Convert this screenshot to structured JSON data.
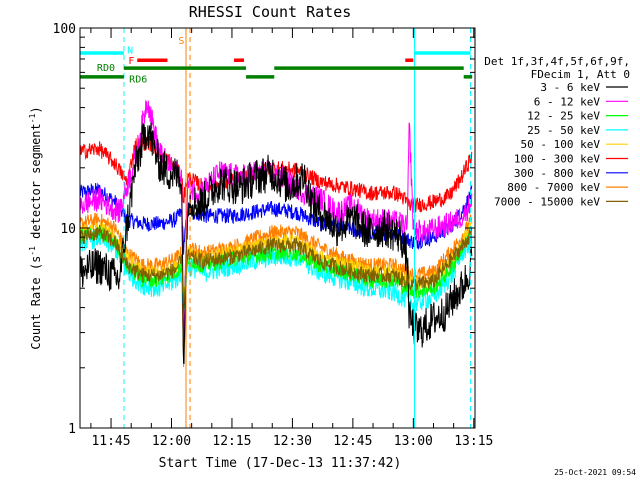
{
  "chart_data": {
    "type": "line",
    "title": "RHESSI Count Rates",
    "xlabel": "Start Time (17-Dec-13 11:37:42)",
    "ylabel": "Count Rate (s⁻¹ detector segment⁻¹)",
    "ylabel_parts": [
      "Count Rate (s",
      "-1",
      " detector segment",
      "-1",
      ")"
    ],
    "y_scale": "log",
    "ylim": [
      1,
      100
    ],
    "y_ticks": [
      {
        "value": 1,
        "label": "1"
      },
      {
        "value": 10,
        "label": "10"
      },
      {
        "value": 100,
        "label": "100"
      }
    ],
    "xlim": [
      -7.7,
      90.3
    ],
    "x_ticks": [
      {
        "value": 0,
        "label": "11:45"
      },
      {
        "value": 15,
        "label": "12:00"
      },
      {
        "value": 30,
        "label": "12:15"
      },
      {
        "value": 45,
        "label": "12:30"
      },
      {
        "value": 60,
        "label": "12:45"
      },
      {
        "value": 75,
        "label": "13:00"
      },
      {
        "value": 90,
        "label": "13:15"
      }
    ],
    "legend": {
      "placement": "right",
      "header": [
        "Det 1f,3f,4f,5f,6f,9f,",
        "FDecim 1, Att 0"
      ]
    },
    "series": [
      {
        "name": "3 - 6 keV",
        "color": "#000000",
        "x": [
          -7.7,
          -3,
          2,
          6,
          9,
          12,
          14,
          16,
          17.5,
          18,
          19,
          22,
          27,
          32,
          36,
          40,
          44,
          48,
          50,
          52,
          56,
          60,
          64,
          68,
          72,
          73.5,
          74,
          76,
          78,
          80,
          83,
          85,
          87,
          88.5,
          89.5
        ],
        "values": [
          6,
          6.5,
          5.5,
          20,
          32,
          21,
          19,
          18.5,
          18,
          2,
          14,
          13,
          17,
          16,
          18,
          19,
          16,
          18,
          13,
          12,
          10,
          11,
          9.5,
          10,
          9,
          7,
          3.5,
          3,
          3.2,
          3.5,
          3.8,
          4.5,
          5,
          5.8,
          7
        ]
      },
      {
        "name": "6 - 12 keV",
        "color": "#ff00ff",
        "x": [
          -7.7,
          -3,
          2,
          6,
          9,
          12,
          14,
          16,
          17.5,
          18,
          19,
          22,
          27,
          32,
          36,
          40,
          44,
          48,
          52,
          56,
          60,
          64,
          68,
          72,
          73.5,
          74,
          75,
          78,
          81,
          84,
          86,
          88,
          89.5
        ],
        "values": [
          13,
          14,
          12,
          22,
          44,
          24,
          21,
          19,
          19,
          2.5,
          16,
          15,
          19,
          18,
          19,
          19,
          17,
          15,
          14,
          12,
          13,
          11,
          11,
          10.5,
          10,
          34,
          9.8,
          9.5,
          10,
          10.5,
          11,
          12,
          14
        ]
      },
      {
        "name": "12 - 25 keV",
        "color": "#00ff00",
        "x": [
          -7.7,
          -3,
          1,
          4,
          8,
          12,
          16,
          17.5,
          18,
          19,
          23,
          30,
          40,
          46,
          52,
          58,
          64,
          70,
          75,
          80,
          85,
          87,
          89.5
        ],
        "values": [
          9,
          9.5,
          8.5,
          6.5,
          5.5,
          5.5,
          6,
          6.5,
          4,
          7,
          6.5,
          7,
          7.5,
          7.5,
          6.5,
          6,
          5.5,
          5.5,
          4.8,
          5,
          6.5,
          8,
          9
        ]
      },
      {
        "name": "25 - 50 keV",
        "color": "#00ffff",
        "x": [
          -7.7,
          -3,
          1,
          4,
          8,
          12,
          16,
          17.5,
          18,
          19,
          23,
          30,
          40,
          46,
          52,
          58,
          64,
          70,
          75,
          80,
          85,
          87,
          89.5
        ],
        "values": [
          8.5,
          9,
          8,
          6,
          5.2,
          5,
          5.5,
          6,
          3.8,
          6.5,
          6,
          6.5,
          7.2,
          7.2,
          6,
          5.5,
          5,
          4.8,
          4.2,
          4.5,
          6,
          7.5,
          8.5
        ]
      },
      {
        "name": "50 - 100 keV",
        "color": "#ffd000",
        "x": [
          -7.7,
          -3,
          1,
          4,
          8,
          12,
          16,
          17.5,
          18,
          19,
          23,
          30,
          40,
          46,
          52,
          58,
          64,
          70,
          75,
          80,
          85,
          87,
          89.5
        ],
        "values": [
          9.5,
          10,
          9,
          7,
          6,
          6,
          6.5,
          7,
          4.5,
          7.5,
          7,
          7.5,
          8.5,
          8.5,
          7,
          6.5,
          6,
          6,
          5.2,
          5.5,
          7,
          8.5,
          10
        ]
      },
      {
        "name": "100 - 300 keV",
        "color": "#ff0000",
        "x": [
          -7.7,
          -3,
          1,
          4,
          6,
          9,
          12,
          16,
          17.5,
          18,
          19,
          23,
          30,
          40,
          46,
          52,
          58,
          64,
          70,
          72,
          74,
          76,
          80,
          84,
          87,
          89.5
        ],
        "values": [
          24,
          25,
          21,
          17,
          26,
          27,
          24,
          20,
          18,
          14,
          18,
          16,
          17,
          20,
          19.5,
          17,
          16,
          15,
          15,
          14.5,
          13,
          13,
          13.5,
          14.5,
          18,
          23
        ]
      },
      {
        "name": "300 - 800 keV",
        "color": "#0000ff",
        "x": [
          -7.7,
          -3,
          1,
          4,
          8,
          12,
          16,
          17.5,
          18,
          19,
          23,
          30,
          40,
          46,
          52,
          58,
          64,
          70,
          75,
          80,
          84,
          87,
          89.5
        ],
        "values": [
          15,
          15.5,
          13.5,
          11,
          10.5,
          10.5,
          11,
          12,
          8,
          12.5,
          11.5,
          11.5,
          12.5,
          12,
          10.5,
          10,
          9.5,
          9.5,
          8.5,
          9,
          10,
          12,
          15
        ]
      },
      {
        "name": "800 - 7000 keV",
        "color": "#ff8000",
        "x": [
          -7.7,
          -3,
          1,
          4,
          8,
          12,
          16,
          17.5,
          18,
          19,
          23,
          30,
          40,
          46,
          52,
          58,
          64,
          70,
          75,
          80,
          84,
          87,
          89.5
        ],
        "values": [
          10.5,
          11,
          10,
          7.5,
          6.5,
          6.5,
          7,
          7.5,
          2,
          8,
          7.5,
          8,
          9.5,
          9.5,
          8,
          7,
          6.5,
          6.5,
          5.8,
          6,
          7.5,
          9,
          11
        ]
      },
      {
        "name": "7000 - 15000 keV",
        "color": "#806000",
        "x": [
          -7.7,
          -3,
          1,
          4,
          8,
          12,
          16,
          17.5,
          18,
          19,
          23,
          30,
          40,
          46,
          52,
          58,
          64,
          70,
          75,
          80,
          84,
          87,
          89.5
        ],
        "values": [
          9,
          9.5,
          8.5,
          6.5,
          5.8,
          5.8,
          6.2,
          6.8,
          4.2,
          7.2,
          6.8,
          7.2,
          8.2,
          8.2,
          6.8,
          6.2,
          5.8,
          5.8,
          5.2,
          5.4,
          6.8,
          8,
          9.5
        ]
      }
    ],
    "vertical_lines": [
      {
        "x": 3.2,
        "color": "#00ffff",
        "style": "dashed"
      },
      {
        "x": 19.6,
        "color": "#ff8000",
        "style": "dashed"
      },
      {
        "x": 18.6,
        "color": "#ff8000",
        "style": "solid"
      },
      {
        "x": 75.3,
        "color": "#00ffff",
        "style": "solid"
      },
      {
        "x": 89.2,
        "color": "#00ffff",
        "style": "dashed"
      }
    ],
    "flag_bars": [
      {
        "label": "",
        "color": "#00ffff",
        "y": 75,
        "segments": [
          [
            -7.7,
            3.2
          ],
          [
            75.3,
            89.2
          ]
        ]
      },
      {
        "label": "",
        "color": "#ff0000",
        "y": 69,
        "segments": [
          [
            6.5,
            14.0
          ],
          [
            30.5,
            33.0
          ],
          [
            73.0,
            75.0
          ]
        ]
      },
      {
        "label": "",
        "color": "#008000",
        "y": 63,
        "segments": [
          [
            3.2,
            33.5
          ],
          [
            40.5,
            87.5
          ]
        ]
      },
      {
        "label": "",
        "color": "#008000",
        "y": 57,
        "segments": [
          [
            -7.7,
            3.2
          ],
          [
            33.5,
            40.5
          ],
          [
            87.5,
            89.6
          ]
        ]
      }
    ],
    "annotations": [
      {
        "text": "N",
        "color": "#00ffff",
        "x": 4.0,
        "y": 78
      },
      {
        "text": "F",
        "color": "#ff0000",
        "x": 4.3,
        "y": 69
      },
      {
        "text": "S",
        "color": "#ff8000",
        "x": 16.7,
        "y": 87
      },
      {
        "text": "RD0",
        "color": "#008000",
        "x": -3.5,
        "y": 64
      },
      {
        "text": "RD6",
        "color": "#008000",
        "x": 4.5,
        "y": 56
      }
    ],
    "timestamp": "25-Oct-2021 09:54"
  }
}
